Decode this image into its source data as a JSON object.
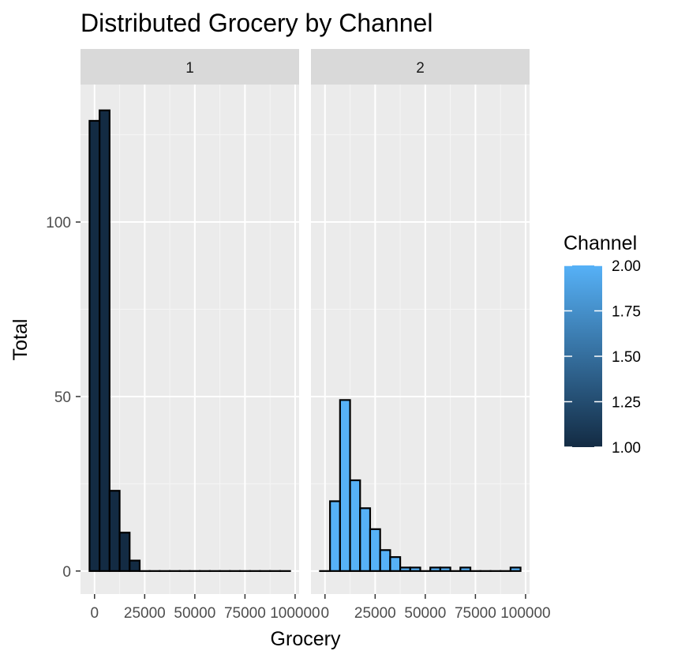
{
  "chart_data": {
    "type": "bar",
    "title": "Distributed Grocery by Channel",
    "xlabel": "Grocery",
    "ylabel": "Total",
    "xlim": [
      -7000,
      102000
    ],
    "ylim": [
      -6.6,
      139.4
    ],
    "x_ticks": [
      0,
      25000,
      50000,
      75000,
      100000
    ],
    "x_tick_labels": [
      "0",
      "25000",
      "50000",
      "75000",
      "100000"
    ],
    "y_ticks": [
      0,
      50,
      100
    ],
    "y_tick_labels": [
      "0",
      "50",
      "100"
    ],
    "grid": true,
    "bin_width": 5000,
    "bin_centers": [
      0,
      5000,
      10000,
      15000,
      20000,
      25000,
      30000,
      35000,
      40000,
      45000,
      50000,
      55000,
      60000,
      65000,
      70000,
      75000,
      80000,
      85000,
      90000,
      95000
    ],
    "panels": [
      {
        "label": "1",
        "fill": "#132B43",
        "values": [
          129,
          132,
          23,
          11,
          3,
          0,
          0,
          0,
          0,
          0,
          0,
          0,
          0,
          0,
          0,
          0,
          0,
          0,
          0,
          0
        ]
      },
      {
        "label": "2",
        "fill": "#56B1F7",
        "values": [
          0,
          20,
          49,
          26,
          18,
          12,
          6,
          4,
          1,
          1,
          0,
          1,
          1,
          0,
          1,
          0,
          0,
          0,
          0,
          1
        ]
      }
    ],
    "legend": {
      "title": "Channel",
      "position": "right",
      "low_color": "#132B43",
      "high_color": "#56B1F7",
      "min": 1.0,
      "max": 2.0,
      "breaks": [
        1.0,
        1.25,
        1.5,
        1.75,
        2.0
      ],
      "labels": [
        "1.00",
        "1.25",
        "1.50",
        "1.75",
        "2.00"
      ]
    }
  }
}
